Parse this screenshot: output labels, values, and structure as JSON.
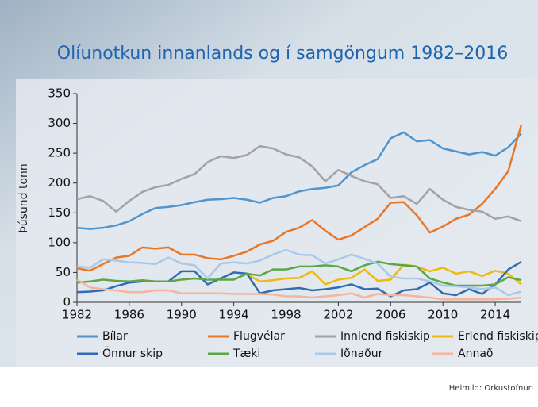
{
  "chart_data": {
    "type": "line",
    "title": "Olíunotkun innanlands og í samgöngum 1982–2016",
    "y_label": "Þúsund tonn",
    "source": "Heimild: Orkustofnun",
    "x": [
      1982,
      1983,
      1984,
      1985,
      1986,
      1987,
      1988,
      1989,
      1990,
      1991,
      1992,
      1993,
      1994,
      1995,
      1996,
      1997,
      1998,
      1999,
      2000,
      2001,
      2002,
      2003,
      2004,
      2005,
      2006,
      2007,
      2008,
      2009,
      2010,
      2011,
      2012,
      2013,
      2014,
      2015,
      2016
    ],
    "xlim": [
      1982,
      2016
    ],
    "xticks": [
      1982,
      1986,
      1990,
      1994,
      1998,
      2002,
      2006,
      2010,
      2014
    ],
    "ylim": [
      0,
      350
    ],
    "yticks": [
      0,
      50,
      100,
      150,
      200,
      250,
      300,
      350
    ],
    "series": [
      {
        "name": "Bílar",
        "color": "#4f95d0",
        "values": [
          125,
          123,
          125,
          129,
          136,
          148,
          158,
          160,
          163,
          168,
          172,
          173,
          175,
          172,
          167,
          175,
          178,
          186,
          190,
          192,
          196,
          218,
          230,
          240,
          275,
          285,
          270,
          272,
          258,
          253,
          248,
          252,
          246,
          260,
          283
        ]
      },
      {
        "name": "Flugvélar",
        "color": "#e8772a",
        "values": [
          57,
          53,
          64,
          75,
          78,
          92,
          90,
          92,
          80,
          80,
          74,
          72,
          78,
          85,
          97,
          103,
          118,
          125,
          138,
          120,
          105,
          112,
          126,
          140,
          167,
          168,
          146,
          117,
          127,
          140,
          147,
          165,
          190,
          220,
          298
        ]
      },
      {
        "name": "Innlend fiskiskip",
        "color": "#a3a3a3",
        "values": [
          173,
          178,
          170,
          152,
          170,
          185,
          193,
          197,
          207,
          215,
          235,
          245,
          242,
          247,
          262,
          258,
          248,
          243,
          228,
          203,
          222,
          212,
          203,
          198,
          175,
          178,
          165,
          190,
          172,
          160,
          155,
          152,
          140,
          144,
          136
        ]
      },
      {
        "name": "Erlend fiskiskip",
        "color": "#efb910",
        "values": [
          null,
          null,
          null,
          null,
          null,
          null,
          null,
          null,
          null,
          null,
          null,
          null,
          null,
          47,
          35,
          37,
          40,
          41,
          52,
          30,
          38,
          41,
          55,
          36,
          38,
          63,
          60,
          52,
          58,
          48,
          52,
          44,
          53,
          48,
          30
        ]
      },
      {
        "name": "Önnur skip",
        "color": "#2f6cb3",
        "values": [
          17,
          18,
          20,
          27,
          33,
          35,
          35,
          35,
          52,
          52,
          30,
          40,
          50,
          48,
          15,
          20,
          22,
          24,
          20,
          22,
          25,
          30,
          22,
          23,
          10,
          20,
          22,
          33,
          15,
          12,
          22,
          14,
          30,
          55,
          68
        ]
      },
      {
        "name": "Tæki",
        "color": "#5ba746",
        "values": [
          33,
          35,
          38,
          36,
          35,
          37,
          35,
          35,
          38,
          40,
          38,
          38,
          38,
          48,
          45,
          55,
          55,
          60,
          60,
          62,
          60,
          52,
          62,
          68,
          64,
          62,
          60,
          40,
          33,
          28,
          28,
          28,
          30,
          42,
          37
        ]
      },
      {
        "name": "Iðnaður",
        "color": "#a8c9ea",
        "values": [
          60,
          58,
          72,
          70,
          67,
          66,
          64,
          75,
          65,
          62,
          40,
          65,
          67,
          65,
          70,
          80,
          88,
          80,
          79,
          65,
          72,
          80,
          73,
          65,
          43,
          40,
          40,
          35,
          28,
          27,
          25,
          22,
          25,
          12,
          18
        ]
      },
      {
        "name": "Annað",
        "color": "#f5b49c",
        "values": [
          38,
          25,
          22,
          20,
          17,
          17,
          20,
          20,
          15,
          15,
          15,
          15,
          14,
          14,
          14,
          13,
          10,
          10,
          8,
          10,
          12,
          15,
          8,
          14,
          12,
          12,
          10,
          8,
          5,
          5,
          5,
          5,
          5,
          6,
          8
        ]
      }
    ]
  }
}
